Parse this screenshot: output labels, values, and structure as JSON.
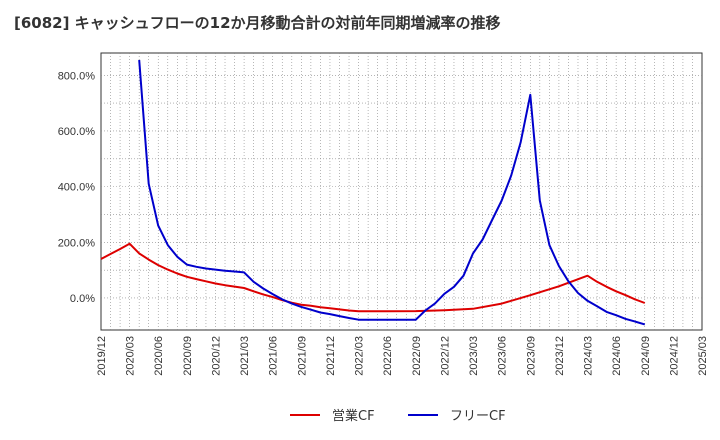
{
  "title": "[6082]  キャッシュフローの12か月移動合計の対前年同期増減率の推移",
  "chart_data": {
    "type": "line",
    "title": "[6082]  キャッシュフローの12か月移動合計の対前年同期増減率の推移",
    "xlabel": "",
    "ylabel": "",
    "x_ticks": [
      "2019/12",
      "2020/03",
      "2020/06",
      "2020/09",
      "2020/12",
      "2021/03",
      "2021/06",
      "2021/09",
      "2021/12",
      "2022/03",
      "2022/06",
      "2022/09",
      "2022/12",
      "2023/03",
      "2023/06",
      "2023/09",
      "2023/12",
      "2024/03",
      "2024/06",
      "2024/09",
      "2024/12",
      "2025/03"
    ],
    "y_ticks": [
      "0.0%",
      "200.0%",
      "400.0%",
      "600.0%",
      "800.0%"
    ],
    "ylim": [
      -115,
      880
    ],
    "grid": true,
    "legend": "bottom-center",
    "series": [
      {
        "name": "営業CF",
        "color": "#dd0000",
        "x": [
          "2019/12",
          "2020/01",
          "2020/02",
          "2020/03",
          "2020/04",
          "2020/05",
          "2020/06",
          "2020/07",
          "2020/08",
          "2020/09",
          "2020/10",
          "2020/11",
          "2020/12",
          "2021/01",
          "2021/02",
          "2021/03",
          "2021/04",
          "2021/05",
          "2021/06",
          "2021/07",
          "2021/08",
          "2021/09",
          "2021/10",
          "2021/11",
          "2021/12",
          "2022/01",
          "2022/02",
          "2022/03",
          "2022/06",
          "2022/09",
          "2022/12",
          "2023/03",
          "2023/06",
          "2023/09",
          "2023/12",
          "2024/03",
          "2024/04",
          "2024/05",
          "2024/06",
          "2024/07",
          "2024/08",
          "2024/09"
        ],
        "values": [
          140,
          158,
          176,
          195,
          160,
          138,
          118,
          102,
          88,
          76,
          68,
          60,
          52,
          46,
          41,
          36,
          24,
          13,
          3,
          -8,
          -17,
          -24,
          -28,
          -33,
          -37,
          -41,
          -45,
          -48,
          -48,
          -47,
          -44,
          -39,
          -20,
          10,
          42,
          80,
          58,
          40,
          24,
          10,
          -5,
          -18
        ]
      },
      {
        "name": "フリーCF",
        "color": "#0000cc",
        "x": [
          "2020/04",
          "2020/05",
          "2020/06",
          "2020/07",
          "2020/08",
          "2020/09",
          "2020/10",
          "2020/11",
          "2020/12",
          "2021/01",
          "2021/02",
          "2021/03",
          "2021/04",
          "2021/05",
          "2021/06",
          "2021/07",
          "2021/08",
          "2021/09",
          "2021/10",
          "2021/11",
          "2021/12",
          "2022/01",
          "2022/02",
          "2022/03",
          "2022/06",
          "2022/09",
          "2022/10",
          "2022/11",
          "2022/12",
          "2023/01",
          "2023/02",
          "2023/03",
          "2023/04",
          "2023/05",
          "2023/06",
          "2023/07",
          "2023/08",
          "2023/09",
          "2023/10",
          "2023/11",
          "2023/12",
          "2024/01",
          "2024/02",
          "2024/03",
          "2024/04",
          "2024/05",
          "2024/06",
          "2024/07",
          "2024/08",
          "2024/09"
        ],
        "values": [
          855,
          410,
          260,
          190,
          148,
          120,
          112,
          106,
          102,
          98,
          95,
          92,
          58,
          34,
          14,
          -5,
          -20,
          -32,
          -42,
          -52,
          -58,
          -65,
          -72,
          -78,
          -78,
          -78,
          -45,
          -20,
          15,
          40,
          80,
          160,
          210,
          280,
          350,
          440,
          560,
          730,
          350,
          190,
          115,
          60,
          18,
          -10,
          -30,
          -50,
          -62,
          -75,
          -85,
          -95
        ]
      }
    ]
  }
}
